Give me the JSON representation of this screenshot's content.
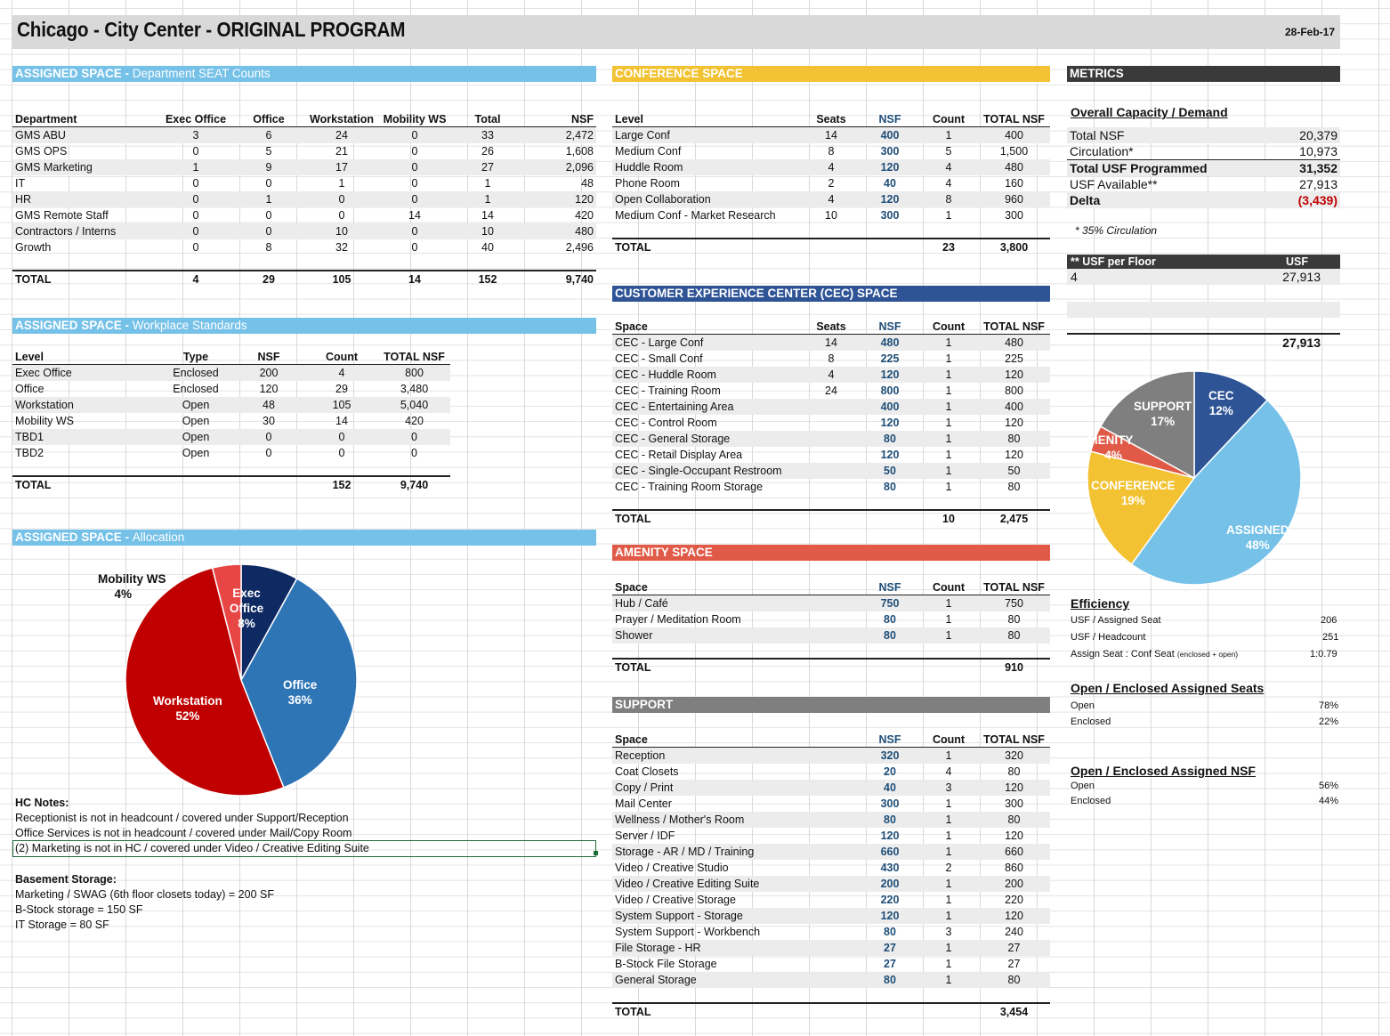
{
  "header": {
    "title": "Chicago - City Center - ORIGINAL PROGRAM",
    "date": "28-Feb-17"
  },
  "colors": {
    "assigned": "#75c1e8",
    "conference": "#f2c232",
    "cec": "#2e5496",
    "amenity": "#e05a47",
    "support": "#7f7f7f",
    "metrics": "#3a3a3a"
  },
  "assigned_seat": {
    "bar_a": "ASSIGNED SPACE - ",
    "bar_b": "Department SEAT Counts",
    "headers": [
      "Department",
      "Exec Office",
      "Office",
      "Workstation",
      "Mobility WS",
      "Total",
      "NSF"
    ],
    "rows": [
      [
        "GMS ABU",
        "3",
        "6",
        "24",
        "0",
        "33",
        "2,472"
      ],
      [
        "GMS OPS",
        "0",
        "5",
        "21",
        "0",
        "26",
        "1,608"
      ],
      [
        "GMS Marketing",
        "1",
        "9",
        "17",
        "0",
        "27",
        "2,096"
      ],
      [
        "IT",
        "0",
        "0",
        "1",
        "0",
        "1",
        "48"
      ],
      [
        "HR",
        "0",
        "1",
        "0",
        "0",
        "1",
        "120"
      ],
      [
        "GMS Remote Staff",
        "0",
        "0",
        "0",
        "14",
        "14",
        "420"
      ],
      [
        "Contractors / Interns",
        "0",
        "0",
        "10",
        "0",
        "10",
        "480"
      ],
      [
        "Growth",
        "0",
        "8",
        "32",
        "0",
        "40",
        "2,496"
      ]
    ],
    "total": [
      "TOTAL",
      "4",
      "29",
      "105",
      "14",
      "152",
      "9,740"
    ]
  },
  "workplace": {
    "bar_a": "ASSIGNED SPACE - ",
    "bar_b": "Workplace Standards",
    "headers": [
      "Level",
      "Type",
      "NSF",
      "Count",
      "TOTAL NSF"
    ],
    "rows": [
      [
        "Exec Office",
        "Enclosed",
        "200",
        "4",
        "800"
      ],
      [
        "Office",
        "Enclosed",
        "120",
        "29",
        "3,480"
      ],
      [
        "Workstation",
        "Open",
        "48",
        "105",
        "5,040"
      ],
      [
        "Mobility WS",
        "Open",
        "30",
        "14",
        "420"
      ],
      [
        "TBD1",
        "Open",
        "0",
        "0",
        "0"
      ],
      [
        "TBD2",
        "Open",
        "0",
        "0",
        "0"
      ]
    ],
    "total": [
      "TOTAL",
      "",
      "",
      "152",
      "9,740"
    ]
  },
  "allocation": {
    "bar_a": "ASSIGNED SPACE - ",
    "bar_b": "Allocation",
    "labels": {
      "mobility_name": "Mobility WS",
      "mobility_pct": "4%",
      "exec_name": "Exec Office",
      "exec_pct": "8%",
      "office_name": "Office",
      "office_pct": "36%",
      "ws_name": "Workstation",
      "ws_pct": "52%"
    }
  },
  "alloc_chart": {
    "type": "pie",
    "categories": [
      "Exec Office",
      "Office",
      "Workstation",
      "Mobility WS"
    ],
    "values": [
      8,
      36,
      52,
      4
    ],
    "colors": [
      "#0f2a63",
      "#2e75b6",
      "#c00000",
      "#e84545"
    ]
  },
  "notes": {
    "hc_title": "HC Notes:",
    "hc": [
      "Receptionist is not in headcount /  covered under Support/Reception",
      "Office Services is not in headcount / covered under Mail/Copy Room",
      "(2) Marketing is not in HC / covered under Video / Creative Editing Suite"
    ],
    "base_title": "Basement Storage:",
    "base": [
      "Marketing / SWAG (6th floor closets today) = 200 SF",
      "B-Stock storage = 150 SF",
      "IT Storage = 80 SF"
    ]
  },
  "conference": {
    "bar": "CONFERENCE SPACE",
    "headers": [
      "Level",
      "Seats",
      "NSF",
      "Count",
      "TOTAL NSF"
    ],
    "rows": [
      [
        "Large Conf",
        "14",
        "400",
        "1",
        "400"
      ],
      [
        "Medium Conf",
        "8",
        "300",
        "5",
        "1,500"
      ],
      [
        "Huddle Room",
        "4",
        "120",
        "4",
        "480"
      ],
      [
        "Phone Room",
        "2",
        "40",
        "4",
        "160"
      ],
      [
        "Open Collaboration",
        "4",
        "120",
        "8",
        "960"
      ],
      [
        "Medium Conf - Market Research",
        "10",
        "300",
        "1",
        "300"
      ]
    ],
    "total": [
      "TOTAL",
      "",
      "",
      "23",
      "3,800"
    ]
  },
  "cec": {
    "bar": "CUSTOMER EXPERIENCE CENTER (CEC) SPACE",
    "headers": [
      "Space",
      "Seats",
      "NSF",
      "Count",
      "TOTAL NSF"
    ],
    "rows": [
      [
        "CEC - Large Conf",
        "14",
        "480",
        "1",
        "480"
      ],
      [
        "CEC - Small Conf",
        "8",
        "225",
        "1",
        "225"
      ],
      [
        "CEC - Huddle Room",
        "4",
        "120",
        "1",
        "120"
      ],
      [
        "CEC - Training Room",
        "24",
        "800",
        "1",
        "800"
      ],
      [
        "CEC - Entertaining Area",
        "",
        "400",
        "1",
        "400"
      ],
      [
        "CEC - Control Room",
        "",
        "120",
        "1",
        "120"
      ],
      [
        "CEC - General Storage",
        "",
        "80",
        "1",
        "80"
      ],
      [
        "CEC - Retail Display Area",
        "",
        "120",
        "1",
        "120"
      ],
      [
        "CEC - Single-Occupant Restroom",
        "",
        "50",
        "1",
        "50"
      ],
      [
        "CEC - Training Room Storage",
        "",
        "80",
        "1",
        "80"
      ]
    ],
    "total": [
      "TOTAL",
      "",
      "",
      "10",
      "2,475"
    ]
  },
  "amenity": {
    "bar": "AMENITY SPACE",
    "headers": [
      "Space",
      "NSF",
      "Count",
      "TOTAL NSF"
    ],
    "rows": [
      [
        "Hub / Café",
        "750",
        "1",
        "750"
      ],
      [
        "Prayer / Meditation Room",
        "80",
        "1",
        "80"
      ],
      [
        "Shower",
        "80",
        "1",
        "80"
      ]
    ],
    "total": [
      "TOTAL",
      "",
      "",
      "910"
    ]
  },
  "support": {
    "bar": "SUPPORT",
    "headers": [
      "Space",
      "NSF",
      "Count",
      "TOTAL NSF"
    ],
    "rows": [
      [
        "Reception",
        "320",
        "1",
        "320"
      ],
      [
        "Coat Closets",
        "20",
        "4",
        "80"
      ],
      [
        "Copy / Print",
        "40",
        "3",
        "120"
      ],
      [
        "Mail Center",
        "300",
        "1",
        "300"
      ],
      [
        "Wellness / Mother's Room",
        "80",
        "1",
        "80"
      ],
      [
        "Server / IDF",
        "120",
        "1",
        "120"
      ],
      [
        "Storage - AR / MD / Training",
        "660",
        "1",
        "660"
      ],
      [
        "Video / Creative Studio",
        "430",
        "2",
        "860"
      ],
      [
        "Video / Creative Editing Suite",
        "200",
        "1",
        "200"
      ],
      [
        "Video / Creative Storage",
        "220",
        "1",
        "220"
      ],
      [
        "System Support - Storage",
        "120",
        "1",
        "120"
      ],
      [
        "System Support - Workbench",
        "80",
        "3",
        "240"
      ],
      [
        "File Storage - HR",
        "27",
        "1",
        "27"
      ],
      [
        "B-Stock File Storage",
        "27",
        "1",
        "27"
      ],
      [
        "General Storage",
        "80",
        "1",
        "80"
      ]
    ],
    "total": [
      "TOTAL",
      "",
      "",
      "3,454"
    ]
  },
  "metrics": {
    "bar": "METRICS",
    "capacity_title": "Overall Capacity / Demand",
    "capacity": [
      [
        "Total NSF",
        "20,379"
      ],
      [
        "Circulation*",
        "10,973"
      ],
      [
        "Total USF Programmed",
        "31,352"
      ],
      [
        "USF Available**",
        "27,913"
      ],
      [
        "Delta",
        "(3,439)"
      ]
    ],
    "circ_note": "* 35% Circulation",
    "floor_hdr": [
      "** USF per Floor",
      "USF"
    ],
    "floor_row": [
      "4",
      "27,913"
    ],
    "floor_total": "27,913",
    "eff_title": "Efficiency",
    "eff": [
      [
        "USF / Assigned Seat",
        "206"
      ],
      [
        "USF / Headcount",
        "251"
      ],
      [
        "Assign Seat : Conf Seat",
        "(enclosed + open)",
        "1:0.79"
      ]
    ],
    "seats_title": "Open / Enclosed Assigned Seats",
    "seats": [
      [
        "Open",
        "78%"
      ],
      [
        "Enclosed",
        "22%"
      ]
    ],
    "nsf_title": "Open / Enclosed Assigned NSF",
    "nsf": [
      [
        "Open",
        "56%"
      ],
      [
        "Enclosed",
        "44%"
      ]
    ]
  },
  "metrics_chart": {
    "type": "pie",
    "categories": [
      "CEC",
      "ASSIGNED",
      "CONFERENCE",
      "AMENITY",
      "SUPPORT"
    ],
    "values": [
      12,
      48,
      19,
      4,
      17
    ],
    "colors": [
      "#2e5496",
      "#75c1e8",
      "#f2c232",
      "#e05a47",
      "#7f7f7f"
    ],
    "labels": {
      "cec": "CEC",
      "cec_pct": "12%",
      "assigned": "ASSIGNED",
      "assigned_pct": "48%",
      "conference": "CONFERENCE",
      "conference_pct": "19%",
      "amenity": "AMENITY",
      "amenity_pct": "4%",
      "support": "SUPPORT",
      "support_pct": "17%"
    }
  }
}
